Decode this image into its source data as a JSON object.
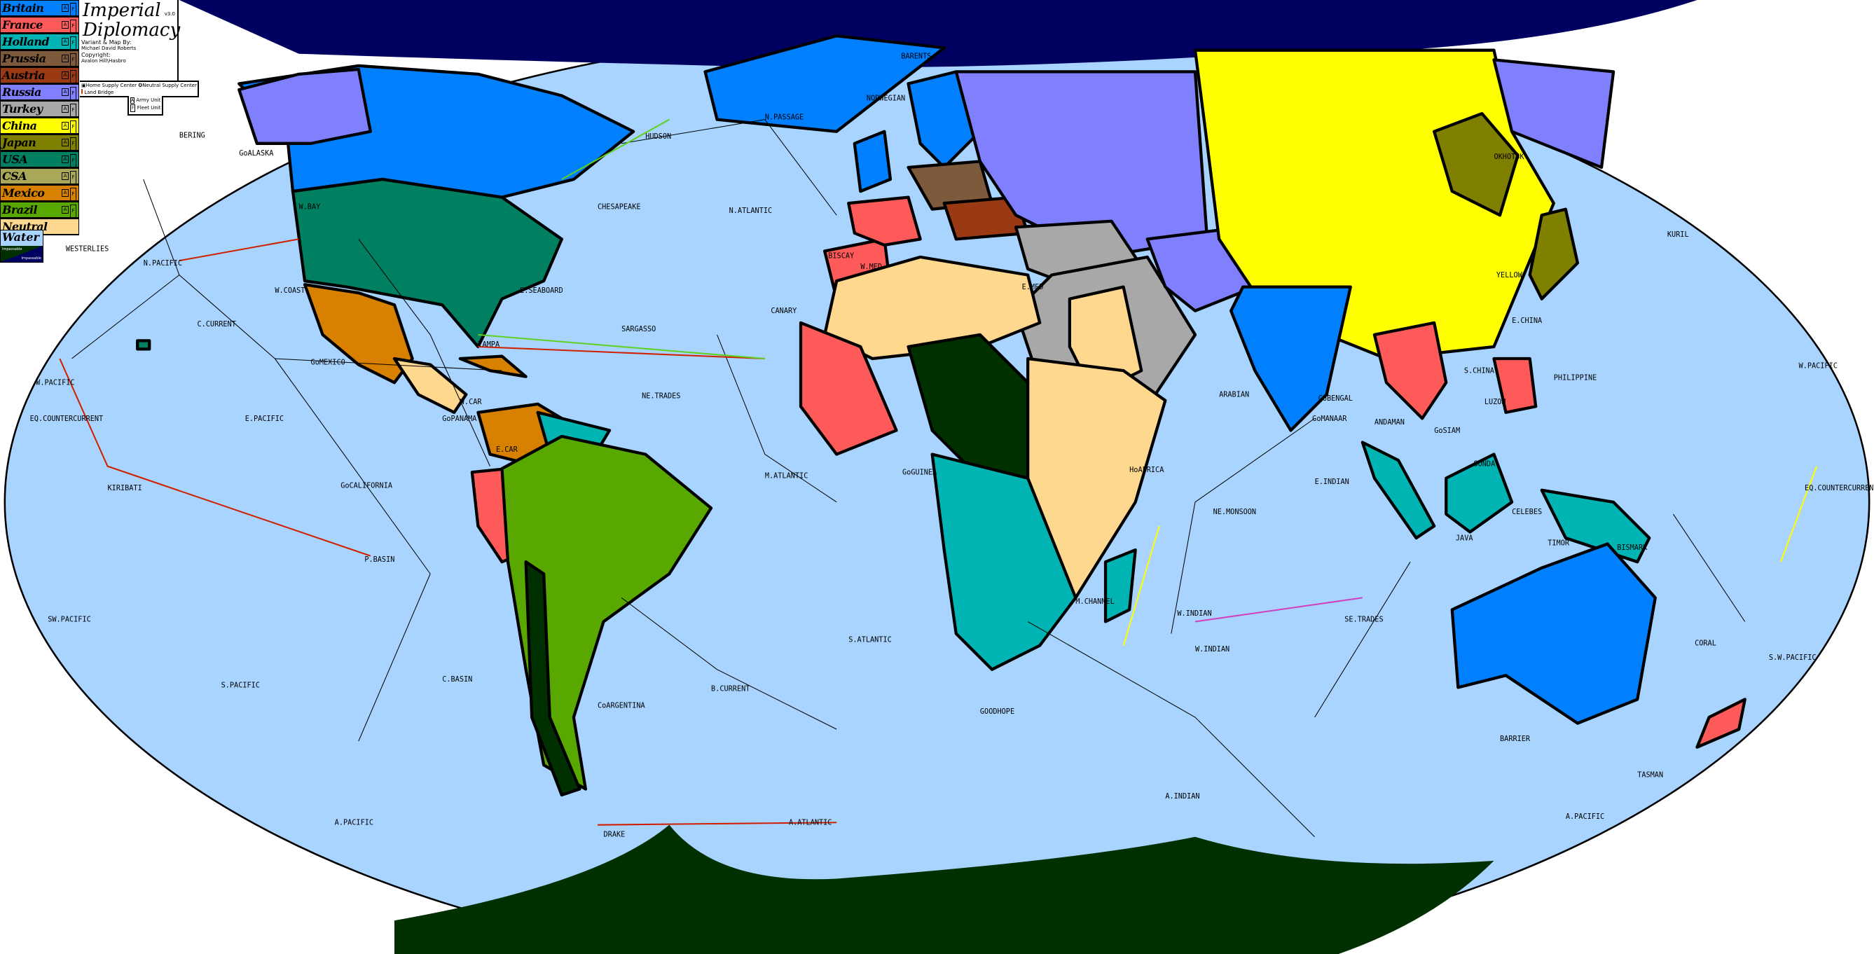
{
  "title": {
    "line1": "Imperial",
    "line2": "Diplomacy",
    "version": "v3.0",
    "credit_label": "Variant & Map By:",
    "credit_name": "Michael David Roberts",
    "copyright_label": "Copyright:",
    "copyright_holder": "Avalon Hill\\Hasbro"
  },
  "key": {
    "home_sc": "Home Supply Center",
    "neutral_sc": "Neutral Supply Center",
    "land_bridge": "Land Bridge",
    "army": "Army Unit",
    "fleet": "Fleet Unit",
    "army_glyph": "A",
    "fleet_glyph": "F"
  },
  "factions": [
    {
      "name": "Britain",
      "color": "#0080ff"
    },
    {
      "name": "France",
      "color": "#ff5a5a"
    },
    {
      "name": "Holland",
      "color": "#00b4b4"
    },
    {
      "name": "Prussia",
      "color": "#7e5a3c"
    },
    {
      "name": "Austria",
      "color": "#9a3a14"
    },
    {
      "name": "Russia",
      "color": "#8080ff"
    },
    {
      "name": "Turkey",
      "color": "#a8a8a8"
    },
    {
      "name": "China",
      "color": "#ffff00"
    },
    {
      "name": "Japan",
      "color": "#808000"
    },
    {
      "name": "USA",
      "color": "#008060"
    },
    {
      "name": "CSA",
      "color": "#a8a858"
    },
    {
      "name": "Mexico",
      "color": "#d88000"
    },
    {
      "name": "Brazil",
      "color": "#58a800"
    }
  ],
  "neutral": {
    "name": "Neutral",
    "color": "#ffd890"
  },
  "water": {
    "name": "Water",
    "color": "#a8d4ff",
    "impassable_land": "Impassable",
    "impassable_water": "Impassable"
  },
  "colors": {
    "arctic": "#000060",
    "antarctic": "#003000",
    "border": "#000000"
  },
  "sea_labels": [
    "BERING",
    "WESTERLIES",
    "N.PACIFIC",
    "W.COAST",
    "C.CURRENT",
    "W.PACIFIC",
    "EQ.COUNTERCURRENT",
    "E.PACIFIC",
    "KIRIBATI",
    "P.BASIN",
    "SW.PACIFIC",
    "S.PACIFIC",
    "C.BASIN",
    "A.PACIFIC",
    "DRAKE",
    "A.ATLANTIC",
    "S.ATLANTIC",
    "GOODHOPE",
    "A.INDIAN",
    "BARRIER",
    "TASMAN",
    "CORAL",
    "BISMARK",
    "SE.TRADES",
    "W.INDIAN",
    "NE.MONSOON",
    "ARABIAN",
    "E.INDIAN",
    "SUNDA",
    "PHILIPPINE",
    "YELLOW",
    "KURIL",
    "OKHOTSK",
    "BARENTS",
    "NORWEGIAN",
    "N.PASSAGE",
    "N.ATLANTIC",
    "HUDSON",
    "CHESAPEAKE",
    "E.SEABOARD",
    "SARGASSO",
    "CANARY",
    "BISCAY",
    "NE.TRADES",
    "M.ATLANTIC",
    "GoGUINEA",
    "GoMEXICO",
    "GoCALIFORNIA",
    "GoPANAMA",
    "W.CAR",
    "E.CAR",
    "TAMPA",
    "GoALASKA",
    "W.BAY",
    "W.INDIAN",
    "TIMOR",
    "CELEBES",
    "S.CHINA",
    "GoBENGAL",
    "ANDAMAN",
    "GoSIAM",
    "GoMANAAR",
    "HoAFRICA",
    "M.CHANNEL",
    "CoARGENTINA",
    "B.CURRENT",
    "W.PACIFIC",
    "EQ.COUNTERCURRENT",
    "S.W.PACIFIC",
    "A.PACIFIC",
    "JAVA",
    "E.CHINA",
    "LUZON",
    "W.MED",
    "E.MED"
  ]
}
